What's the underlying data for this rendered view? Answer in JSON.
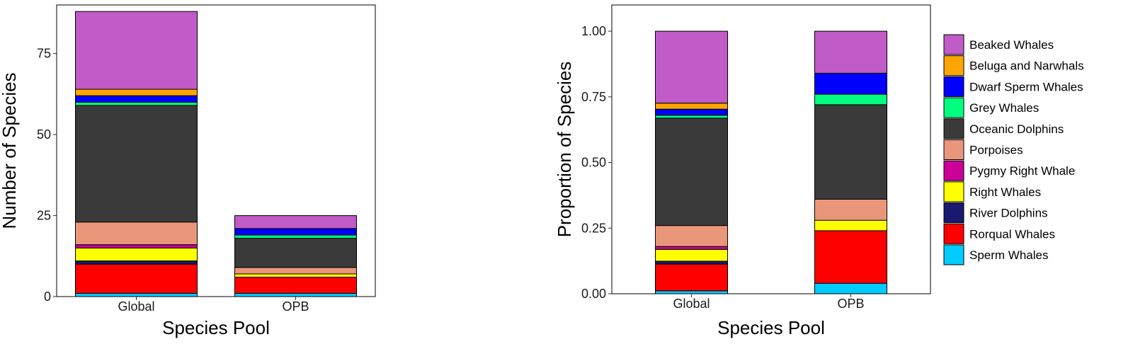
{
  "legend": {
    "entries": [
      {
        "name": "Beaked Whales",
        "color": "#C05BC8"
      },
      {
        "name": "Beluga and Narwhals",
        "color": "#FFA500"
      },
      {
        "name": "Dwarf Sperm Whales",
        "color": "#0000FF"
      },
      {
        "name": "Grey Whales",
        "color": "#00FF7F"
      },
      {
        "name": "Oceanic Dolphins",
        "color": "#3A3A3A"
      },
      {
        "name": "Porpoises",
        "color": "#E9967A"
      },
      {
        "name": "Pygmy Right Whale",
        "color": "#CC0099"
      },
      {
        "name": "Right Whales",
        "color": "#FFFF00"
      },
      {
        "name": "River Dolphins",
        "color": "#191970"
      },
      {
        "name": "Rorqual Whales",
        "color": "#FF0000"
      },
      {
        "name": "Sperm Whales",
        "color": "#00CCFF"
      }
    ],
    "placement": "right"
  },
  "chart_data": [
    {
      "type": "bar",
      "stacked": true,
      "xlabel": "Species Pool",
      "ylabel": "Number of Species",
      "categories": [
        "Global",
        "OPB"
      ],
      "ylim": [
        0,
        90
      ],
      "yticks": [
        0,
        25,
        50,
        75
      ],
      "ytick_labels": [
        "0",
        "25",
        "50",
        "75"
      ],
      "series": [
        {
          "name": "Sperm Whales",
          "values": [
            1,
            1
          ]
        },
        {
          "name": "Rorqual Whales",
          "values": [
            9,
            5
          ]
        },
        {
          "name": "River Dolphins",
          "values": [
            1,
            0
          ]
        },
        {
          "name": "Right Whales",
          "values": [
            4,
            1
          ]
        },
        {
          "name": "Pygmy Right Whale",
          "values": [
            1,
            0
          ]
        },
        {
          "name": "Porpoises",
          "values": [
            7,
            2
          ]
        },
        {
          "name": "Oceanic Dolphins",
          "values": [
            36,
            9
          ]
        },
        {
          "name": "Grey Whales",
          "values": [
            1,
            1
          ]
        },
        {
          "name": "Dwarf Sperm Whales",
          "values": [
            2,
            2
          ]
        },
        {
          "name": "Beluga and Narwhals",
          "values": [
            2,
            0
          ]
        },
        {
          "name": "Beaked Whales",
          "values": [
            24,
            4
          ]
        }
      ]
    },
    {
      "type": "bar",
      "stacked": true,
      "xlabel": "Species Pool",
      "ylabel": "Proportion of Species",
      "categories": [
        "Global",
        "OPB"
      ],
      "ylim": [
        0,
        1.1
      ],
      "yticks": [
        0,
        0.25,
        0.5,
        0.75,
        1.0
      ],
      "ytick_labels": [
        "0.00",
        "0.25",
        "0.50",
        "0.75",
        "1.00"
      ],
      "series": [
        {
          "name": "Sperm Whales",
          "values": [
            0.011,
            0.04
          ]
        },
        {
          "name": "Rorqual Whales",
          "values": [
            0.102,
            0.2
          ]
        },
        {
          "name": "River Dolphins",
          "values": [
            0.011,
            0
          ]
        },
        {
          "name": "Right Whales",
          "values": [
            0.045,
            0.04
          ]
        },
        {
          "name": "Pygmy Right Whale",
          "values": [
            0.011,
            0
          ]
        },
        {
          "name": "Porpoises",
          "values": [
            0.08,
            0.08
          ]
        },
        {
          "name": "Oceanic Dolphins",
          "values": [
            0.409,
            0.36
          ]
        },
        {
          "name": "Grey Whales",
          "values": [
            0.011,
            0.04
          ]
        },
        {
          "name": "Dwarf Sperm Whales",
          "values": [
            0.023,
            0.08
          ]
        },
        {
          "name": "Beluga and Narwhals",
          "values": [
            0.023,
            0
          ]
        },
        {
          "name": "Beaked Whales",
          "values": [
            0.274,
            0.16
          ]
        }
      ]
    }
  ]
}
